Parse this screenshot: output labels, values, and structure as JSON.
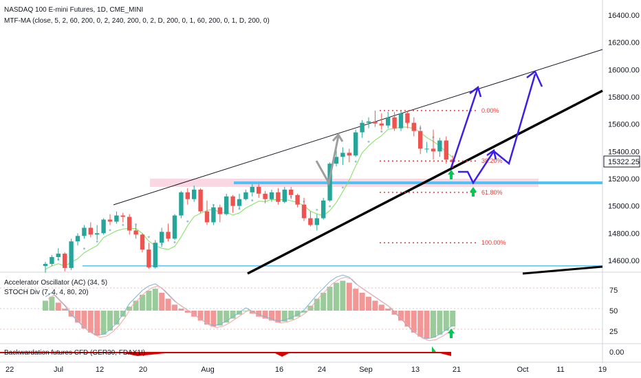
{
  "header": {
    "title": "NASDAQ 100 E-mini Futures, 1D, CME_MINI",
    "indicator": "MTF-MA (close, 5, 2, 60, 200, 0, 2, 240, 200, 0, 2, D, 200, 0, 1, 60, 200, 0, 1, D, 200, 0)"
  },
  "oscillator": {
    "ac_label": "Accelerator Oscillator (AC) (34, 5)",
    "stoch_label": "STOCH Div (7, 4, 4, 80, 20)",
    "levels": [
      "75",
      "50",
      "25"
    ]
  },
  "bottom_panel": {
    "label": "Backwardation futures CFD (GER30, FDAX1!)",
    "value": "0.00"
  },
  "price_axis": {
    "ticks": [
      "16400.00",
      "16200.00",
      "16000.00",
      "15800.00",
      "15600.00",
      "15400.00",
      "15200.00",
      "15000.00",
      "14800.00",
      "14600.00"
    ],
    "current_price": "15322.25"
  },
  "fib_labels": [
    "0.00%",
    "38.20%",
    "61.80%",
    "100.00%"
  ],
  "time_axis": [
    "22",
    "Jul",
    "12",
    "20",
    "Aug",
    "16",
    "24",
    "Sep",
    "13",
    "21",
    "Oct",
    "11",
    "19"
  ],
  "colors": {
    "up": "#26a69a",
    "down": "#ef5350",
    "projection": "#3b1ee8",
    "trend": "#000000",
    "support": "#4fc3f7",
    "ma": "#7ee05a"
  },
  "chart_data": {
    "type": "candlestick",
    "title": "NASDAQ 100 E-mini Futures, 1D, CME_MINI",
    "ylim": [
      14510,
      16515
    ],
    "y_ticks": [
      14600,
      14800,
      15000,
      15200,
      15400,
      15600,
      15800,
      16000,
      16200,
      16400
    ],
    "current_price": 15322.25,
    "candles": [
      [
        14560,
        14590,
        14510,
        14575
      ],
      [
        14575,
        14640,
        14560,
        14625
      ],
      [
        14625,
        14690,
        14600,
        14650
      ],
      [
        14650,
        14660,
        14520,
        14545
      ],
      [
        14545,
        14760,
        14530,
        14740
      ],
      [
        14740,
        14800,
        14710,
        14780
      ],
      [
        14780,
        14860,
        14760,
        14840
      ],
      [
        14840,
        14880,
        14770,
        14790
      ],
      [
        14790,
        14860,
        14750,
        14800
      ],
      [
        14800,
        14910,
        14790,
        14900
      ],
      [
        14900,
        14940,
        14860,
        14885
      ],
      [
        14885,
        14960,
        14870,
        14930
      ],
      [
        14930,
        14950,
        14880,
        14920
      ],
      [
        14920,
        14940,
        14790,
        14820
      ],
      [
        14820,
        14860,
        14760,
        14790
      ],
      [
        14790,
        14800,
        14660,
        14680
      ],
      [
        14680,
        14730,
        14540,
        14550
      ],
      [
        14550,
        14750,
        14540,
        14730
      ],
      [
        14730,
        14840,
        14700,
        14810
      ],
      [
        14810,
        14870,
        14740,
        14760
      ],
      [
        14760,
        14940,
        14750,
        14930
      ],
      [
        14930,
        15110,
        14910,
        15100
      ],
      [
        15100,
        15130,
        15010,
        15050
      ],
      [
        15050,
        15150,
        15030,
        15120
      ],
      [
        15120,
        15130,
        14950,
        14960
      ],
      [
        14960,
        15040,
        14860,
        14880
      ],
      [
        14880,
        15010,
        14860,
        14990
      ],
      [
        14990,
        15010,
        14880,
        14940
      ],
      [
        14940,
        15090,
        14930,
        15070
      ],
      [
        15070,
        15080,
        14950,
        15000
      ],
      [
        15000,
        15090,
        14980,
        15050
      ],
      [
        15050,
        15120,
        15040,
        15100
      ],
      [
        15100,
        15160,
        15070,
        15140
      ],
      [
        15140,
        15160,
        15060,
        15090
      ],
      [
        15090,
        15110,
        15020,
        15050
      ],
      [
        15050,
        15120,
        15030,
        15100
      ],
      [
        15100,
        15130,
        15010,
        15030
      ],
      [
        15030,
        15140,
        15020,
        15120
      ],
      [
        15120,
        15140,
        15050,
        15080
      ],
      [
        15080,
        15090,
        14990,
        15010
      ],
      [
        15010,
        15060,
        14890,
        14910
      ],
      [
        14910,
        14960,
        14850,
        14860
      ],
      [
        14860,
        14940,
        14820,
        14910
      ],
      [
        14910,
        15060,
        14900,
        15040
      ],
      [
        15040,
        15320,
        15030,
        15310
      ],
      [
        15310,
        15410,
        15290,
        15360
      ],
      [
        15360,
        15430,
        15300,
        15390
      ],
      [
        15390,
        15420,
        15320,
        15370
      ],
      [
        15370,
        15560,
        15360,
        15540
      ],
      [
        15540,
        15630,
        15500,
        15610
      ],
      [
        15610,
        15650,
        15570,
        15620
      ],
      [
        15620,
        15700,
        15580,
        15605
      ],
      [
        15605,
        15680,
        15560,
        15590
      ],
      [
        15590,
        15690,
        15570,
        15650
      ],
      [
        15650,
        15690,
        15550,
        15570
      ],
      [
        15570,
        15700,
        15550,
        15680
      ],
      [
        15680,
        15700,
        15570,
        15610
      ],
      [
        15610,
        15650,
        15510,
        15550
      ],
      [
        15550,
        15590,
        15380,
        15420
      ],
      [
        15420,
        15470,
        15390,
        15420
      ],
      [
        15420,
        15560,
        15340,
        15400
      ],
      [
        15400,
        15500,
        15360,
        15480
      ],
      [
        15480,
        15510,
        15310,
        15340
      ],
      [
        15340,
        15370,
        15280,
        15322
      ]
    ],
    "fibonacci": [
      {
        "label": "0.00%",
        "price": 15700
      },
      {
        "label": "38.20%",
        "price": 15330
      },
      {
        "label": "61.80%",
        "price": 15100
      },
      {
        "label": "100.00%",
        "price": 14730
      }
    ],
    "support_level": 15170,
    "lower_support_level": 14550,
    "oscillator_bars": [
      10,
      14,
      8,
      2,
      -6,
      -12,
      -18,
      -22,
      -25,
      -24,
      -20,
      -14,
      -6,
      4,
      10,
      16,
      20,
      22,
      18,
      12,
      6,
      2,
      -2,
      -6,
      -10,
      -14,
      -16,
      -15,
      -12,
      -8,
      -4,
      0,
      -3,
      -6,
      -8,
      -10,
      -12,
      -11,
      -9,
      -6,
      -2,
      5,
      12,
      18,
      24,
      28,
      30,
      28,
      22,
      18,
      14,
      10,
      6,
      2,
      -4,
      -10,
      -16,
      -22,
      -26,
      -28,
      -27,
      -24,
      -20,
      -16
    ],
    "time_labels": [
      "22",
      "Jul",
      "12",
      "20",
      "Aug",
      "16",
      "24",
      "Sep",
      "13",
      "21",
      "Oct",
      "11",
      "19"
    ]
  }
}
